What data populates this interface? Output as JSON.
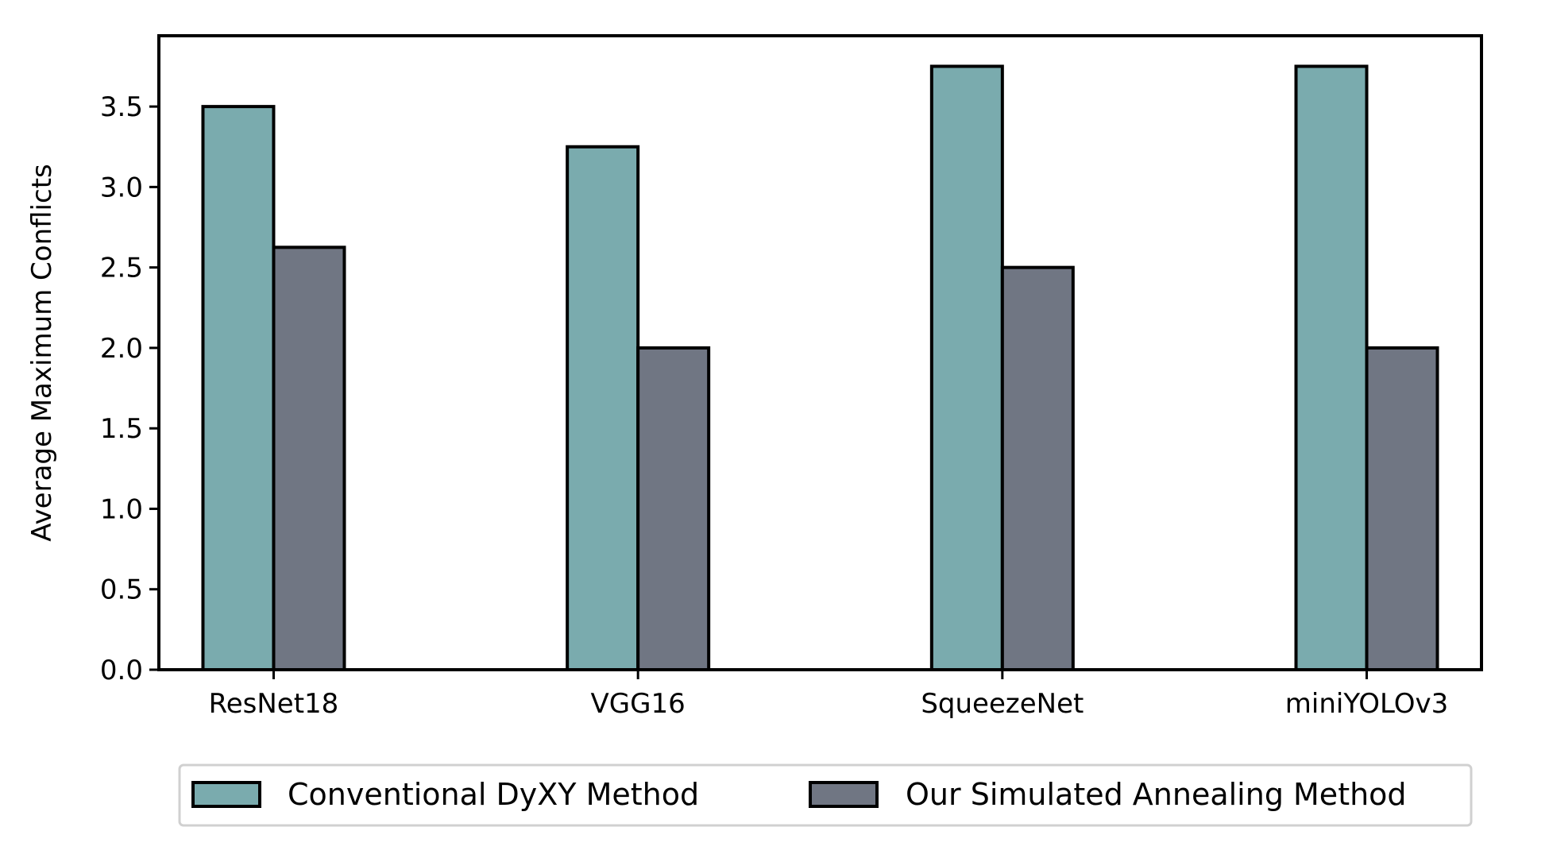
{
  "chart_data": {
    "type": "bar",
    "title": "",
    "xlabel": "",
    "ylabel": "Average Maximum Conflicts",
    "categories": [
      "ResNet18",
      "VGG16",
      "SqueezeNet",
      "miniYOLOv3"
    ],
    "series": [
      {
        "name": "Conventional DyXY Method",
        "values": [
          3.5,
          3.25,
          3.75,
          3.75
        ],
        "color": "#7aabae"
      },
      {
        "name": "Our Simulated Annealing Method",
        "values": [
          2.625,
          2.0,
          2.5,
          2.0
        ],
        "color": "#707683"
      }
    ],
    "ylim": [
      0,
      3.94
    ],
    "yticks": [
      "0.0",
      "0.5",
      "1.0",
      "1.5",
      "2.0",
      "2.5",
      "3.0",
      "3.5"
    ],
    "grid": false,
    "legend_position": "bottom-center",
    "bar_edge_color": "#000000"
  }
}
